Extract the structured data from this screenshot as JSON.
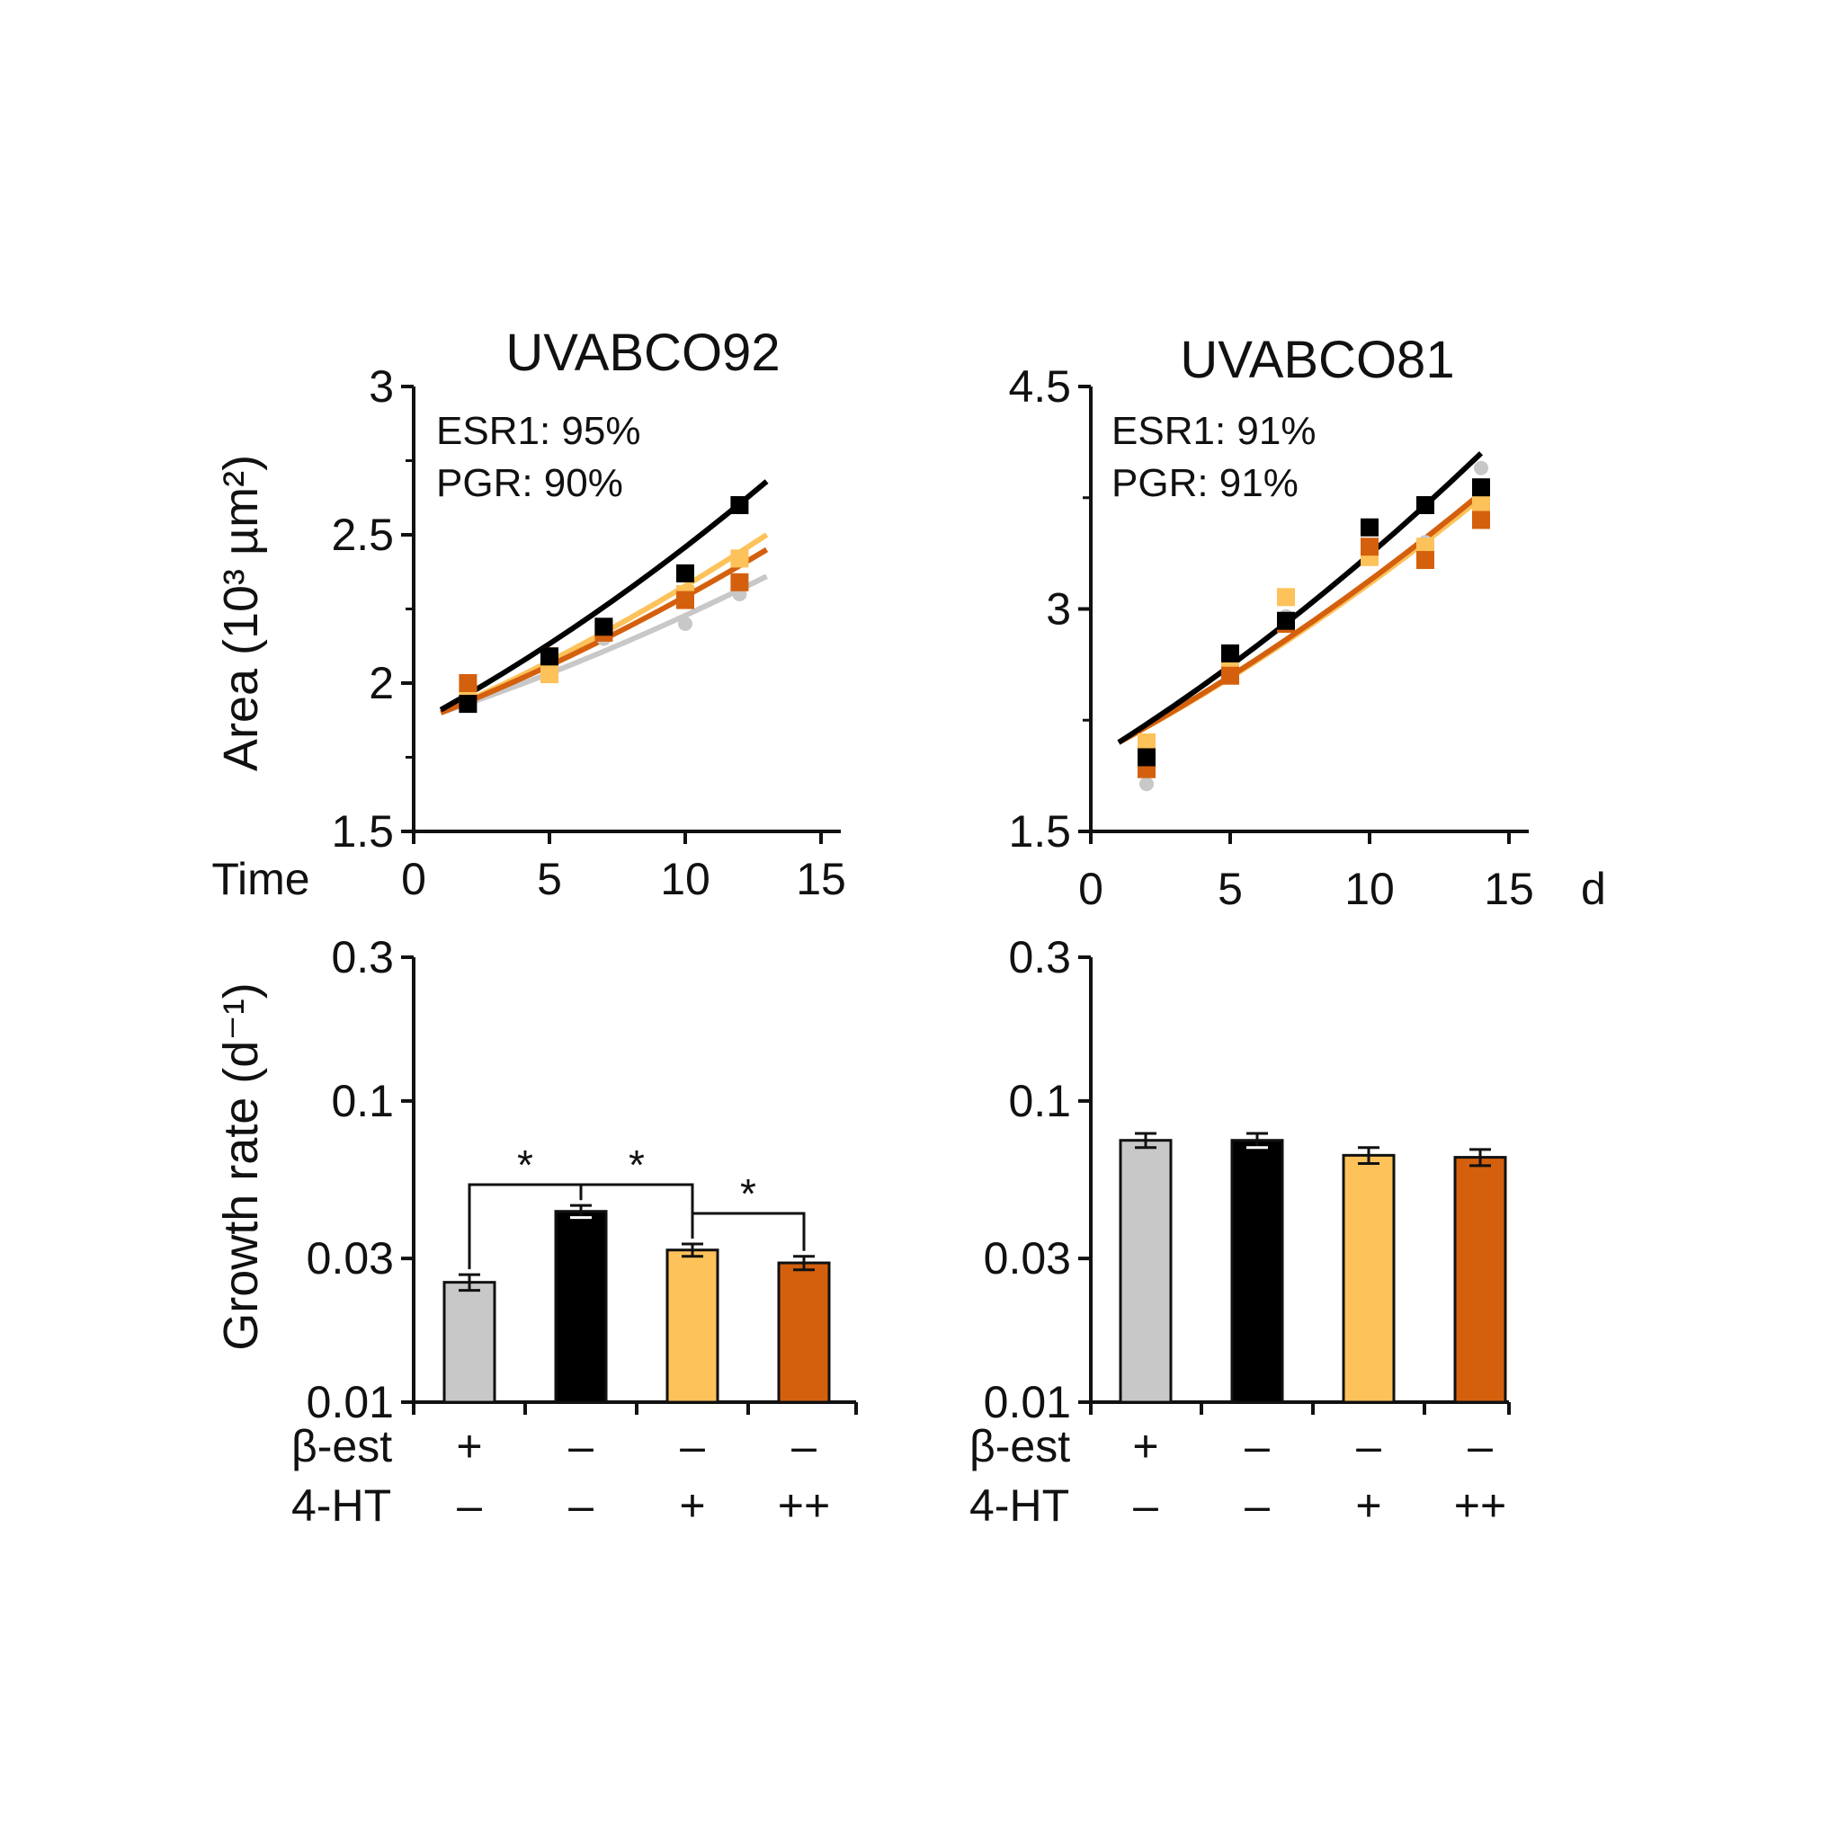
{
  "colors": {
    "beta_est": "#c8c8c8",
    "control": "#000000",
    "ht_low": "#fdc25a",
    "ht_high": "#d4600e"
  },
  "chart_data": [
    {
      "type": "scatter",
      "title": "UVABCO92",
      "ylabel": "Area (10³ µm²)",
      "xlabel_prefix": "Time",
      "xlabel_suffix": "",
      "xlim": [
        0,
        15
      ],
      "ylim": [
        1.5,
        3
      ],
      "xticks": [
        0,
        5,
        10,
        15
      ],
      "yticks": [
        1.5,
        2,
        2.5,
        3
      ],
      "annotations": [
        "ESR1: 95%",
        "PGR: 90%"
      ],
      "series": [
        {
          "color": "#c8c8c8",
          "x": [
            2,
            5,
            7,
            10,
            12
          ],
          "y": [
            1.94,
            2.06,
            2.15,
            2.2,
            2.3
          ],
          "fit": {
            "x0": 1,
            "y0": 1.9,
            "x1": 13,
            "y1": 2.36
          }
        },
        {
          "color": "#fdc25a",
          "x": [
            2,
            5,
            7,
            10,
            12
          ],
          "y": [
            1.96,
            2.03,
            2.18,
            2.3,
            2.42
          ],
          "fit": {
            "x0": 1,
            "y0": 1.9,
            "x1": 13,
            "y1": 2.5
          }
        },
        {
          "color": "#d4600e",
          "x": [
            2,
            5,
            7,
            10,
            12
          ],
          "y": [
            2.0,
            2.09,
            2.17,
            2.28,
            2.34
          ],
          "fit": {
            "x0": 1,
            "y0": 1.9,
            "x1": 13,
            "y1": 2.45
          }
        },
        {
          "color": "#000000",
          "x": [
            2,
            5,
            7,
            10,
            12
          ],
          "y": [
            1.93,
            2.09,
            2.19,
            2.37,
            2.6
          ],
          "fit": {
            "x0": 1,
            "y0": 1.91,
            "x1": 13,
            "y1": 2.68
          }
        }
      ]
    },
    {
      "type": "scatter",
      "title": "UVABCO81",
      "ylabel": "",
      "xlabel_prefix": "",
      "xlabel_suffix": "d",
      "xlim": [
        0,
        15
      ],
      "ylim": [
        1.5,
        4.5
      ],
      "xticks": [
        0,
        5,
        10,
        15
      ],
      "yticks": [
        1.5,
        3,
        4.5
      ],
      "annotations": [
        "ESR1: 91%",
        "PGR: 91%"
      ],
      "series": [
        {
          "color": "#c8c8c8",
          "x": [
            2,
            5,
            7,
            10,
            12,
            14
          ],
          "y": [
            1.82,
            2.55,
            2.95,
            3.35,
            3.45,
            3.95
          ],
          "fit": {
            "x0": 1,
            "y0": 2.1,
            "x1": 14,
            "y1": 3.75
          }
        },
        {
          "color": "#fdc25a",
          "x": [
            2,
            5,
            7,
            10,
            12,
            14
          ],
          "y": [
            2.1,
            2.6,
            3.08,
            3.35,
            3.42,
            3.7
          ],
          "fit": {
            "x0": 1,
            "y0": 2.1,
            "x1": 14,
            "y1": 3.75
          }
        },
        {
          "color": "#d4600e",
          "x": [
            2,
            5,
            7,
            10,
            12,
            14
          ],
          "y": [
            1.92,
            2.55,
            2.9,
            3.42,
            3.33,
            3.6
          ],
          "fit": {
            "x0": 1,
            "y0": 2.1,
            "x1": 14,
            "y1": 3.78
          }
        },
        {
          "color": "#000000",
          "x": [
            2,
            5,
            7,
            10,
            12,
            14
          ],
          "y": [
            2.0,
            2.7,
            2.92,
            3.55,
            3.7,
            3.82
          ],
          "fit": {
            "x0": 1,
            "y0": 2.1,
            "x1": 14,
            "y1": 4.05
          }
        }
      ]
    },
    {
      "type": "bar",
      "ylabel": "Growth rate (d⁻¹)",
      "yscale": "log",
      "ylim": [
        0.01,
        0.3
      ],
      "yticks": [
        "0.01",
        "0.03",
        "0.1",
        "0.3"
      ],
      "row_labels": [
        "β-est",
        "4-HT"
      ],
      "categories": [
        {
          "beta_est": "+",
          "ht": "–"
        },
        {
          "beta_est": "–",
          "ht": "–"
        },
        {
          "beta_est": "–",
          "ht": "+"
        },
        {
          "beta_est": "–",
          "ht": "++"
        }
      ],
      "values": [
        0.025,
        0.043,
        0.032,
        0.029
      ],
      "errors": [
        0.0015,
        0.002,
        0.0015,
        0.0015
      ],
      "colors": [
        "#c8c8c8",
        "#000000",
        "#fdc25a",
        "#d4600e"
      ],
      "significance": [
        {
          "from": 0,
          "to": 1,
          "label": "*"
        },
        {
          "from": 1,
          "to": 2,
          "label": "*"
        },
        {
          "from": 2,
          "to": 3,
          "label": "*"
        }
      ]
    },
    {
      "type": "bar",
      "ylabel": "",
      "yscale": "log",
      "ylim": [
        0.01,
        0.3
      ],
      "yticks": [
        "0.01",
        "0.03",
        "0.1",
        "0.3"
      ],
      "row_labels": [
        "β-est",
        "4-HT"
      ],
      "categories": [
        {
          "beta_est": "+",
          "ht": "–"
        },
        {
          "beta_est": "–",
          "ht": "–"
        },
        {
          "beta_est": "–",
          "ht": "+"
        },
        {
          "beta_est": "–",
          "ht": "++"
        }
      ],
      "values": [
        0.074,
        0.074,
        0.066,
        0.065
      ],
      "errors": [
        0.004,
        0.004,
        0.004,
        0.004
      ],
      "colors": [
        "#c8c8c8",
        "#000000",
        "#fdc25a",
        "#d4600e"
      ],
      "significance": []
    }
  ]
}
